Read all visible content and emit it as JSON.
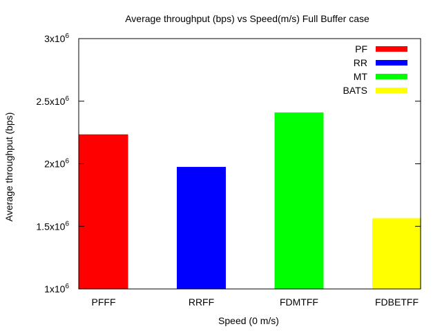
{
  "chart_data": {
    "type": "bar",
    "title": "Average throughput (bps) vs Speed(m/s) Full Buffer case",
    "xlabel": "Speed (0 m/s)",
    "ylabel": "Average throughput (bps)",
    "categories": [
      "PFFF",
      "RRFF",
      "FDMTFF",
      "FDBETFF"
    ],
    "values": [
      2235000,
      1975000,
      2410000,
      1565000
    ],
    "bar_colors": [
      "#ff0000",
      "#0000ff",
      "#00ff00",
      "#ffff00"
    ],
    "ylim": [
      1000000,
      3000000
    ],
    "yticks": [
      {
        "value": 1000000,
        "mantissa": "1x10",
        "exp": "6"
      },
      {
        "value": 1500000,
        "mantissa": "1.5x10",
        "exp": "6"
      },
      {
        "value": 2000000,
        "mantissa": "2x10",
        "exp": "6"
      },
      {
        "value": 2500000,
        "mantissa": "2.5x10",
        "exp": "6"
      },
      {
        "value": 3000000,
        "mantissa": "3x10",
        "exp": "6"
      }
    ],
    "grid": false,
    "legend": {
      "position": "top-right",
      "entries": [
        {
          "label": "PF",
          "color": "#ff0000"
        },
        {
          "label": "RR",
          "color": "#0000ff"
        },
        {
          "label": "MT",
          "color": "#00ff00"
        },
        {
          "label": "BATS",
          "color": "#ffff00"
        }
      ]
    }
  }
}
